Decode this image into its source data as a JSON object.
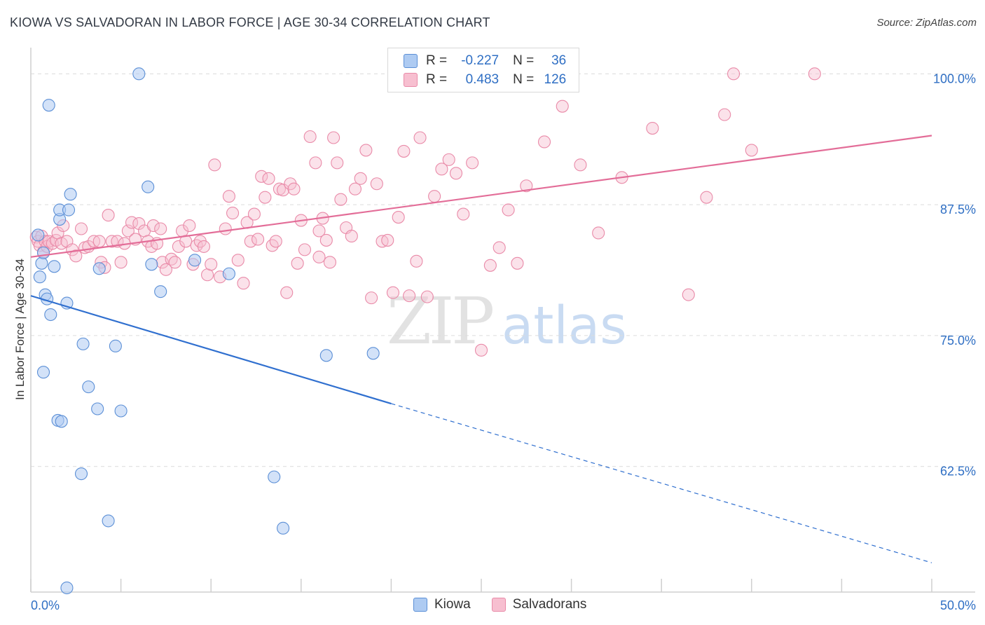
{
  "title": "KIOWA VS SALVADORAN IN LABOR FORCE | AGE 30-34 CORRELATION CHART",
  "source": "Source: ZipAtlas.com",
  "legend": {
    "kiowa": {
      "r_label": "R =",
      "r_value": "-0.227",
      "n_label": "N =",
      "n_value": "36"
    },
    "salvadoran": {
      "r_label": "R =",
      "r_value": "0.483",
      "n_label": "N =",
      "n_value": "126"
    }
  },
  "bottom_legend": {
    "kiowa": "Kiowa",
    "salvadoran": "Salvadorans"
  },
  "colors": {
    "kiowa_fill": "#aecbf2",
    "kiowa_stroke": "#5b8fd6",
    "kiowa_line": "#2f6fcf",
    "salvadoran_fill": "#f7bfd0",
    "salvadoran_stroke": "#e98aa8",
    "salvadoran_line": "#e36d98",
    "tick_label": "#2f6fc4",
    "grid": "#dcdcdc"
  },
  "chart_data": {
    "type": "scatter",
    "title": "KIOWA VS SALVADORAN IN LABOR FORCE | AGE 30-34 CORRELATION CHART",
    "xlabel": "",
    "ylabel": "In Labor Force | Age 30-34",
    "xlim": [
      0,
      50
    ],
    "ylim": [
      50.5,
      102.5
    ],
    "x_tick_labels": [
      "0.0%",
      "50.0%"
    ],
    "y_ticks": [
      62.5,
      75.0,
      87.5,
      100.0
    ],
    "y_tick_labels": [
      "62.5%",
      "75.0%",
      "87.5%",
      "100.0%"
    ],
    "grid": "horizontal dashed",
    "watermark": {
      "zip": "ZIP",
      "atlas": "atlas"
    },
    "series": [
      {
        "name": "Kiowa",
        "points": [
          [
            0.4,
            84.6
          ],
          [
            0.6,
            81.9
          ],
          [
            0.7,
            82.9
          ],
          [
            0.5,
            80.6
          ],
          [
            0.8,
            78.9
          ],
          [
            0.9,
            78.5
          ],
          [
            1.1,
            77.0
          ],
          [
            0.7,
            71.5
          ],
          [
            1.6,
            86.1
          ],
          [
            1.6,
            87.0
          ],
          [
            2.1,
            87.0
          ],
          [
            2.2,
            88.5
          ],
          [
            1.3,
            81.6
          ],
          [
            2.0,
            78.1
          ],
          [
            2.9,
            74.2
          ],
          [
            3.2,
            70.1
          ],
          [
            3.8,
            81.4
          ],
          [
            3.7,
            68.0
          ],
          [
            4.7,
            74.0
          ],
          [
            5.0,
            67.8
          ],
          [
            1.5,
            66.9
          ],
          [
            1.7,
            66.8
          ],
          [
            2.8,
            61.8
          ],
          [
            4.3,
            57.3
          ],
          [
            2.0,
            50.9
          ],
          [
            1.0,
            97.0
          ],
          [
            6.0,
            100.0
          ],
          [
            6.5,
            89.2
          ],
          [
            6.7,
            81.8
          ],
          [
            7.2,
            79.2
          ],
          [
            9.1,
            82.2
          ],
          [
            11.0,
            80.9
          ],
          [
            13.5,
            61.5
          ],
          [
            14.0,
            56.6
          ],
          [
            16.4,
            73.1
          ],
          [
            19.0,
            73.3
          ]
        ],
        "trend": {
          "x": [
            0,
            20
          ],
          "y": [
            78.8,
            68.5
          ],
          "dashed_to": [
            50,
            53.3
          ]
        }
      },
      {
        "name": "Salvadorans",
        "points": [
          [
            0.3,
            84.4
          ],
          [
            0.4,
            84.0
          ],
          [
            0.5,
            83.6
          ],
          [
            0.6,
            84.5
          ],
          [
            0.7,
            83.0
          ],
          [
            0.8,
            84.0
          ],
          [
            0.9,
            83.5
          ],
          [
            1.0,
            84.0
          ],
          [
            1.2,
            83.8
          ],
          [
            1.4,
            84.1
          ],
          [
            1.5,
            84.8
          ],
          [
            1.7,
            83.8
          ],
          [
            1.8,
            85.5
          ],
          [
            2.0,
            84.0
          ],
          [
            2.3,
            83.2
          ],
          [
            2.5,
            82.6
          ],
          [
            2.8,
            85.2
          ],
          [
            3.0,
            83.4
          ],
          [
            3.2,
            83.5
          ],
          [
            3.5,
            84.0
          ],
          [
            3.8,
            84.0
          ],
          [
            3.9,
            82.0
          ],
          [
            4.1,
            81.5
          ],
          [
            4.3,
            86.5
          ],
          [
            4.5,
            84.0
          ],
          [
            4.8,
            84.0
          ],
          [
            5.0,
            82.0
          ],
          [
            5.2,
            83.8
          ],
          [
            5.4,
            85.0
          ],
          [
            5.6,
            85.8
          ],
          [
            5.8,
            84.2
          ],
          [
            6.0,
            85.7
          ],
          [
            6.3,
            85.0
          ],
          [
            6.5,
            84.0
          ],
          [
            6.7,
            83.5
          ],
          [
            6.8,
            85.5
          ],
          [
            7.0,
            83.8
          ],
          [
            7.2,
            85.2
          ],
          [
            7.3,
            82.0
          ],
          [
            7.5,
            81.3
          ],
          [
            7.8,
            82.3
          ],
          [
            8.0,
            82.0
          ],
          [
            8.2,
            83.5
          ],
          [
            8.4,
            85.0
          ],
          [
            8.6,
            84.0
          ],
          [
            8.8,
            85.5
          ],
          [
            9.0,
            81.8
          ],
          [
            9.2,
            83.6
          ],
          [
            9.4,
            84.0
          ],
          [
            9.6,
            83.5
          ],
          [
            9.8,
            80.8
          ],
          [
            10.0,
            81.8
          ],
          [
            10.2,
            91.3
          ],
          [
            10.5,
            80.6
          ],
          [
            10.8,
            85.2
          ],
          [
            11.0,
            88.3
          ],
          [
            11.2,
            86.7
          ],
          [
            11.5,
            82.2
          ],
          [
            11.8,
            80.0
          ],
          [
            12.0,
            85.8
          ],
          [
            12.2,
            84.0
          ],
          [
            12.4,
            86.6
          ],
          [
            12.6,
            84.2
          ],
          [
            12.8,
            90.2
          ],
          [
            13.0,
            88.2
          ],
          [
            13.2,
            90.0
          ],
          [
            13.4,
            83.6
          ],
          [
            13.6,
            84.0
          ],
          [
            13.8,
            89.0
          ],
          [
            14.0,
            88.9
          ],
          [
            14.2,
            79.1
          ],
          [
            14.4,
            89.5
          ],
          [
            14.6,
            89.0
          ],
          [
            14.8,
            81.9
          ],
          [
            15.0,
            86.0
          ],
          [
            15.2,
            83.2
          ],
          [
            15.5,
            94.0
          ],
          [
            15.8,
            91.5
          ],
          [
            16.0,
            82.5
          ],
          [
            16.2,
            86.2
          ],
          [
            16.4,
            84.1
          ],
          [
            16.6,
            82.0
          ],
          [
            16.8,
            93.9
          ],
          [
            17.0,
            91.5
          ],
          [
            17.2,
            88.0
          ],
          [
            17.5,
            85.3
          ],
          [
            17.8,
            84.5
          ],
          [
            18.0,
            89.0
          ],
          [
            18.3,
            90.0
          ],
          [
            18.6,
            92.7
          ],
          [
            18.9,
            78.6
          ],
          [
            19.2,
            89.5
          ],
          [
            19.5,
            84.0
          ],
          [
            19.8,
            84.1
          ],
          [
            20.1,
            79.1
          ],
          [
            20.4,
            86.3
          ],
          [
            20.7,
            92.6
          ],
          [
            21.0,
            78.8
          ],
          [
            21.4,
            82.1
          ],
          [
            21.6,
            93.9
          ],
          [
            22.0,
            78.7
          ],
          [
            22.4,
            88.3
          ],
          [
            22.8,
            90.9
          ],
          [
            23.2,
            91.8
          ],
          [
            23.6,
            90.5
          ],
          [
            24.0,
            86.6
          ],
          [
            24.5,
            91.5
          ],
          [
            25.0,
            73.6
          ],
          [
            25.5,
            81.7
          ],
          [
            26.0,
            83.4
          ],
          [
            26.5,
            87.0
          ],
          [
            27.0,
            81.9
          ],
          [
            27.5,
            89.3
          ],
          [
            28.5,
            93.5
          ],
          [
            29.5,
            96.9
          ],
          [
            30.5,
            91.3
          ],
          [
            31.5,
            84.8
          ],
          [
            32.8,
            90.1
          ],
          [
            34.5,
            94.8
          ],
          [
            36.5,
            78.9
          ],
          [
            37.5,
            88.2
          ],
          [
            38.5,
            96.1
          ],
          [
            39.0,
            100.0
          ],
          [
            40.0,
            92.7
          ],
          [
            43.5,
            100.0
          ],
          [
            16.0,
            85.0
          ]
        ],
        "trend": {
          "x": [
            0,
            50
          ],
          "y": [
            82.5,
            94.1
          ]
        }
      }
    ]
  }
}
